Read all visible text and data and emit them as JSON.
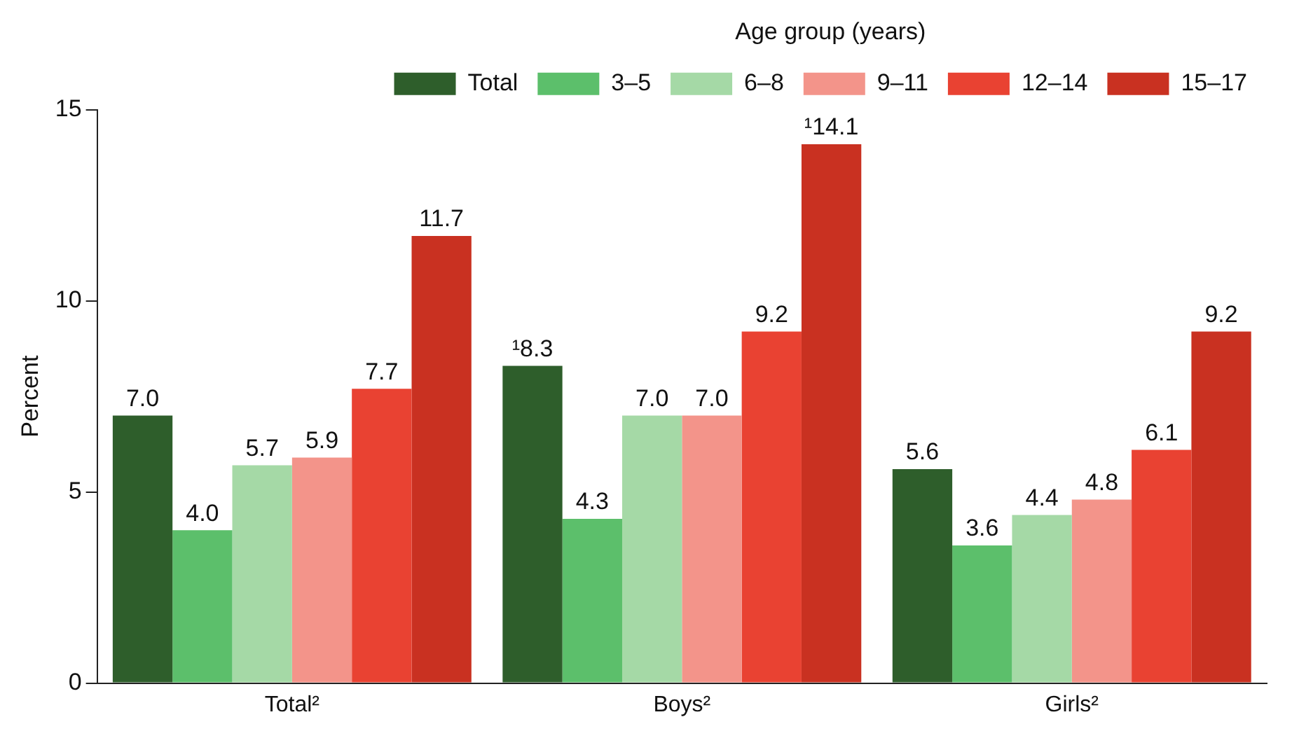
{
  "chart_data": {
    "type": "bar",
    "ylabel": "Percent",
    "legend_title": "Age group (years)",
    "legend": "top",
    "grid": false,
    "categories": [
      "Total²",
      "Boys²",
      "Girls²"
    ],
    "ylim": [
      0,
      15
    ],
    "yticks": [
      0,
      5,
      10,
      15
    ],
    "series": [
      {
        "name": "Total",
        "color": "#2e5e2b",
        "values": [
          7.0,
          8.3,
          5.6
        ],
        "value_labels": [
          "7.0",
          "¹8.3",
          "5.6"
        ]
      },
      {
        "name": "3–5",
        "color": "#5cbf6b",
        "values": [
          4.0,
          4.3,
          3.6
        ],
        "value_labels": [
          "4.0",
          "4.3",
          "3.6"
        ]
      },
      {
        "name": "6–8",
        "color": "#a5d9a6",
        "values": [
          5.7,
          7.0,
          4.4
        ],
        "value_labels": [
          "5.7",
          "7.0",
          "4.4"
        ]
      },
      {
        "name": "9–11",
        "color": "#f3948a",
        "values": [
          5.9,
          7.0,
          4.8
        ],
        "value_labels": [
          "5.9",
          "7.0",
          "4.8"
        ]
      },
      {
        "name": "12–14",
        "color": "#e94232",
        "values": [
          7.7,
          9.2,
          6.1
        ],
        "value_labels": [
          "7.7",
          "9.2",
          "6.1"
        ]
      },
      {
        "name": "15–17",
        "color": "#c93121",
        "values": [
          11.7,
          14.1,
          9.2
        ],
        "value_labels": [
          "11.7",
          "¹14.1",
          "9.2"
        ]
      }
    ]
  }
}
